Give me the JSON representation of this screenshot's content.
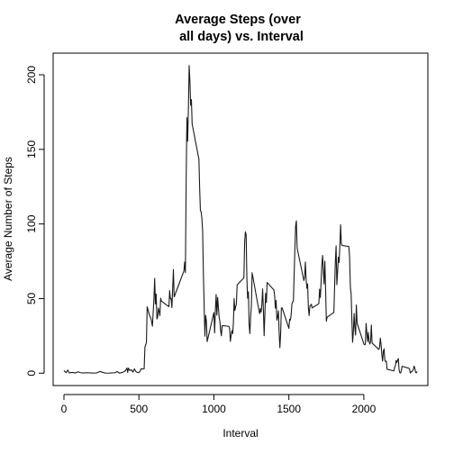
{
  "chart_data": {
    "type": "line",
    "title_lines": [
      "Average Steps (over",
      "all days) vs. Interval"
    ],
    "xlabel": "Interval",
    "ylabel": "Average Number of Steps",
    "xlim": [
      -72,
      2427
    ],
    "ylim": [
      -8.3,
      214.5
    ],
    "x_ticks": [
      0,
      500,
      1000,
      1500,
      2000
    ],
    "y_ticks": [
      0,
      50,
      100,
      150,
      200
    ],
    "grid": false,
    "legend": "none",
    "series": [
      {
        "color": "#1a1a1a",
        "points": [
          [
            0,
            1.7
          ],
          [
            15,
            0.3
          ],
          [
            25,
            2.1
          ],
          [
            35,
            0.2
          ],
          [
            50,
            0.4
          ],
          [
            60,
            0.5
          ],
          [
            75,
            0.1
          ],
          [
            95,
            0.9
          ],
          [
            110,
            0.3
          ],
          [
            130,
            0.1
          ],
          [
            150,
            0.3
          ],
          [
            175,
            0.2
          ],
          [
            200,
            0.0
          ],
          [
            220,
            0.2
          ],
          [
            240,
            1.1
          ],
          [
            260,
            0.5
          ],
          [
            280,
            0.0
          ],
          [
            300,
            0.0
          ],
          [
            320,
            0.2
          ],
          [
            340,
            0.3
          ],
          [
            355,
            1.1
          ],
          [
            370,
            0.0
          ],
          [
            390,
            0.5
          ],
          [
            410,
            1.6
          ],
          [
            420,
            3.5
          ],
          [
            425,
            0.5
          ],
          [
            430,
            3.4
          ],
          [
            440,
            1.7
          ],
          [
            450,
            2.3
          ],
          [
            460,
            0.7
          ],
          [
            470,
            2.9
          ],
          [
            480,
            1.0
          ],
          [
            495,
            0.3
          ],
          [
            505,
            0.8
          ],
          [
            515,
            3.0
          ],
          [
            525,
            2.7
          ],
          [
            535,
            3.0
          ],
          [
            540,
            17.5
          ],
          [
            550,
            20.5
          ],
          [
            555,
            44.5
          ],
          [
            570,
            38.9
          ],
          [
            580,
            36.8
          ],
          [
            590,
            31.5
          ],
          [
            600,
            49.5
          ],
          [
            605,
            63.5
          ],
          [
            610,
            46.4
          ],
          [
            615,
            53.0
          ],
          [
            620,
            36.3
          ],
          [
            625,
            37.8
          ],
          [
            630,
            43.6
          ],
          [
            640,
            38.6
          ],
          [
            645,
            50.2
          ],
          [
            650,
            48.3
          ],
          [
            700,
            44.6
          ],
          [
            705,
            55.3
          ],
          [
            710,
            49.9
          ],
          [
            715,
            50.0
          ],
          [
            720,
            43.9
          ],
          [
            730,
            69.5
          ],
          [
            735,
            51.1
          ],
          [
            800,
            68.5
          ],
          [
            805,
            74.5
          ],
          [
            810,
            67.4
          ],
          [
            815,
            128.5
          ],
          [
            820,
            171.2
          ],
          [
            825,
            155.4
          ],
          [
            830,
            177.3
          ],
          [
            835,
            206.2
          ],
          [
            840,
            195.9
          ],
          [
            845,
            179.6
          ],
          [
            850,
            183.4
          ],
          [
            855,
            167.0
          ],
          [
            900,
            143.5
          ],
          [
            905,
            124.0
          ],
          [
            910,
            109.1
          ],
          [
            915,
            108.1
          ],
          [
            920,
            103.7
          ],
          [
            925,
            95.0
          ],
          [
            930,
            66.2
          ],
          [
            935,
            45.2
          ],
          [
            940,
            24.8
          ],
          [
            945,
            38.8
          ],
          [
            950,
            34.9
          ],
          [
            955,
            21.1
          ],
          [
            1000,
            40.6
          ],
          [
            1005,
            27.0
          ],
          [
            1010,
            42.4
          ],
          [
            1015,
            52.7
          ],
          [
            1020,
            38.9
          ],
          [
            1025,
            50.8
          ],
          [
            1030,
            44.3
          ],
          [
            1035,
            37.4
          ],
          [
            1040,
            34.7
          ],
          [
            1045,
            28.3
          ],
          [
            1050,
            25.1
          ],
          [
            1055,
            31.9
          ],
          [
            1100,
            31.4
          ],
          [
            1105,
            29.7
          ],
          [
            1110,
            21.3
          ],
          [
            1115,
            25.5
          ],
          [
            1120,
            28.4
          ],
          [
            1125,
            26.5
          ],
          [
            1130,
            33.4
          ],
          [
            1135,
            50.0
          ],
          [
            1140,
            42.0
          ],
          [
            1145,
            44.6
          ],
          [
            1150,
            46.0
          ],
          [
            1155,
            59.2
          ],
          [
            1200,
            63.9
          ],
          [
            1205,
            87.7
          ],
          [
            1210,
            94.8
          ],
          [
            1215,
            92.8
          ],
          [
            1220,
            63.4
          ],
          [
            1225,
            50.2
          ],
          [
            1230,
            54.5
          ],
          [
            1235,
            32.4
          ],
          [
            1240,
            26.5
          ],
          [
            1245,
            37.7
          ],
          [
            1250,
            45.1
          ],
          [
            1255,
            67.3
          ],
          [
            1300,
            42.3
          ],
          [
            1305,
            39.9
          ],
          [
            1310,
            43.3
          ],
          [
            1315,
            40.9
          ],
          [
            1320,
            46.2
          ],
          [
            1325,
            56.4
          ],
          [
            1330,
            42.8
          ],
          [
            1335,
            25.1
          ],
          [
            1340,
            39.9
          ],
          [
            1345,
            53.5
          ],
          [
            1350,
            47.3
          ],
          [
            1355,
            60.8
          ],
          [
            1400,
            55.8
          ],
          [
            1405,
            51.9
          ],
          [
            1410,
            43.6
          ],
          [
            1415,
            48.7
          ],
          [
            1420,
            35.5
          ],
          [
            1425,
            37.5
          ],
          [
            1430,
            41.8
          ],
          [
            1435,
            27.5
          ],
          [
            1440,
            17.1
          ],
          [
            1445,
            26.1
          ],
          [
            1450,
            43.6
          ],
          [
            1455,
            43.8
          ],
          [
            1500,
            30.0
          ],
          [
            1505,
            36.1
          ],
          [
            1510,
            35.5
          ],
          [
            1515,
            38.8
          ],
          [
            1520,
            46.0
          ],
          [
            1525,
            47.8
          ],
          [
            1530,
            48.1
          ],
          [
            1535,
            65.3
          ],
          [
            1540,
            82.9
          ],
          [
            1545,
            98.7
          ],
          [
            1550,
            102.1
          ],
          [
            1555,
            83.9
          ],
          [
            1600,
            62.1
          ],
          [
            1605,
            64.1
          ],
          [
            1610,
            74.5
          ],
          [
            1615,
            63.2
          ],
          [
            1620,
            56.9
          ],
          [
            1625,
            59.8
          ],
          [
            1630,
            43.9
          ],
          [
            1635,
            38.6
          ],
          [
            1640,
            44.7
          ],
          [
            1645,
            45.5
          ],
          [
            1650,
            46.2
          ],
          [
            1655,
            43.7
          ],
          [
            1700,
            46.6
          ],
          [
            1705,
            56.3
          ],
          [
            1710,
            50.7
          ],
          [
            1715,
            61.2
          ],
          [
            1720,
            72.7
          ],
          [
            1725,
            78.9
          ],
          [
            1730,
            68.9
          ],
          [
            1735,
            59.7
          ],
          [
            1740,
            75.1
          ],
          [
            1745,
            56.5
          ],
          [
            1750,
            34.8
          ],
          [
            1755,
            37.5
          ],
          [
            1800,
            40.7
          ],
          [
            1805,
            58.0
          ],
          [
            1810,
            74.7
          ],
          [
            1815,
            85.3
          ],
          [
            1820,
            59.3
          ],
          [
            1825,
            67.8
          ],
          [
            1830,
            77.7
          ],
          [
            1835,
            74.2
          ],
          [
            1840,
            85.3
          ],
          [
            1845,
            99.5
          ],
          [
            1850,
            86.6
          ],
          [
            1855,
            85.6
          ],
          [
            1900,
            84.9
          ],
          [
            1905,
            77.8
          ],
          [
            1910,
            58.0
          ],
          [
            1915,
            53.4
          ],
          [
            1920,
            36.3
          ],
          [
            1925,
            20.7
          ],
          [
            1930,
            27.4
          ],
          [
            1935,
            40.0
          ],
          [
            1940,
            30.2
          ],
          [
            1945,
            25.5
          ],
          [
            1950,
            45.7
          ],
          [
            1955,
            33.5
          ],
          [
            2000,
            19.6
          ],
          [
            2005,
            19.0
          ],
          [
            2010,
            19.3
          ],
          [
            2015,
            33.3
          ],
          [
            2020,
            26.8
          ],
          [
            2025,
            21.2
          ],
          [
            2030,
            27.3
          ],
          [
            2035,
            21.3
          ],
          [
            2040,
            19.5
          ],
          [
            2045,
            21.3
          ],
          [
            2050,
            32.3
          ],
          [
            2055,
            20.2
          ],
          [
            2100,
            15.9
          ],
          [
            2105,
            17.2
          ],
          [
            2110,
            23.5
          ],
          [
            2115,
            19.2
          ],
          [
            2120,
            12.5
          ],
          [
            2125,
            8.0
          ],
          [
            2130,
            14.7
          ],
          [
            2135,
            16.3
          ],
          [
            2140,
            8.7
          ],
          [
            2145,
            7.8
          ],
          [
            2150,
            8.1
          ],
          [
            2155,
            2.6
          ],
          [
            2200,
            1.5
          ],
          [
            2205,
            3.7
          ],
          [
            2210,
            4.8
          ],
          [
            2215,
            8.5
          ],
          [
            2220,
            7.1
          ],
          [
            2225,
            8.7
          ],
          [
            2230,
            9.8
          ],
          [
            2235,
            2.2
          ],
          [
            2240,
            0.3
          ],
          [
            2245,
            0.1
          ],
          [
            2250,
            1.6
          ],
          [
            2255,
            4.6
          ],
          [
            2300,
            3.3
          ],
          [
            2305,
            2.8
          ],
          [
            2310,
            0.0
          ],
          [
            2315,
            0.8
          ],
          [
            2320,
            1.0
          ],
          [
            2325,
            1.6
          ],
          [
            2330,
            2.6
          ],
          [
            2335,
            4.7
          ],
          [
            2340,
            3.3
          ],
          [
            2345,
            0.6
          ],
          [
            2350,
            0.2
          ],
          [
            2355,
            1.1
          ]
        ]
      }
    ]
  }
}
